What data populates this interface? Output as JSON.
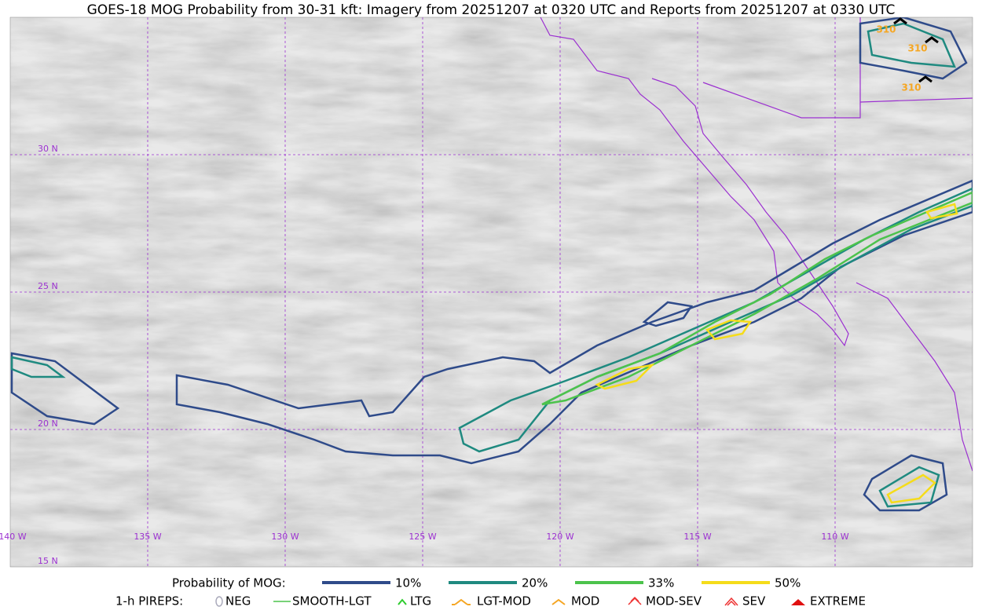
{
  "header": {
    "title": "GOES-18 MOG Probability from 30-31 kft: Imagery from 20251207 at 0320 UTC and Reports from 20251207 at 0330 UTC"
  },
  "map": {
    "lat_labels": [
      "30 N",
      "25 N",
      "20 N",
      "15 N"
    ],
    "lon_labels": [
      "140 W",
      "135 W",
      "130 W",
      "125 W",
      "120 W",
      "115 W",
      "110 W"
    ],
    "report_labels": [
      "310",
      "310",
      "310"
    ]
  },
  "legend": {
    "probability": {
      "title": "Probability of MOG:",
      "items": [
        "10%",
        "20%",
        "33%",
        "50%"
      ]
    },
    "pireps": {
      "title": "1-h PIREPS:",
      "items": [
        "NEG",
        "SMOOTH-LGT",
        "LTG",
        "LGT-MOD",
        "MOD",
        "MOD-SEV",
        "SEV",
        "EXTREME"
      ]
    }
  }
}
